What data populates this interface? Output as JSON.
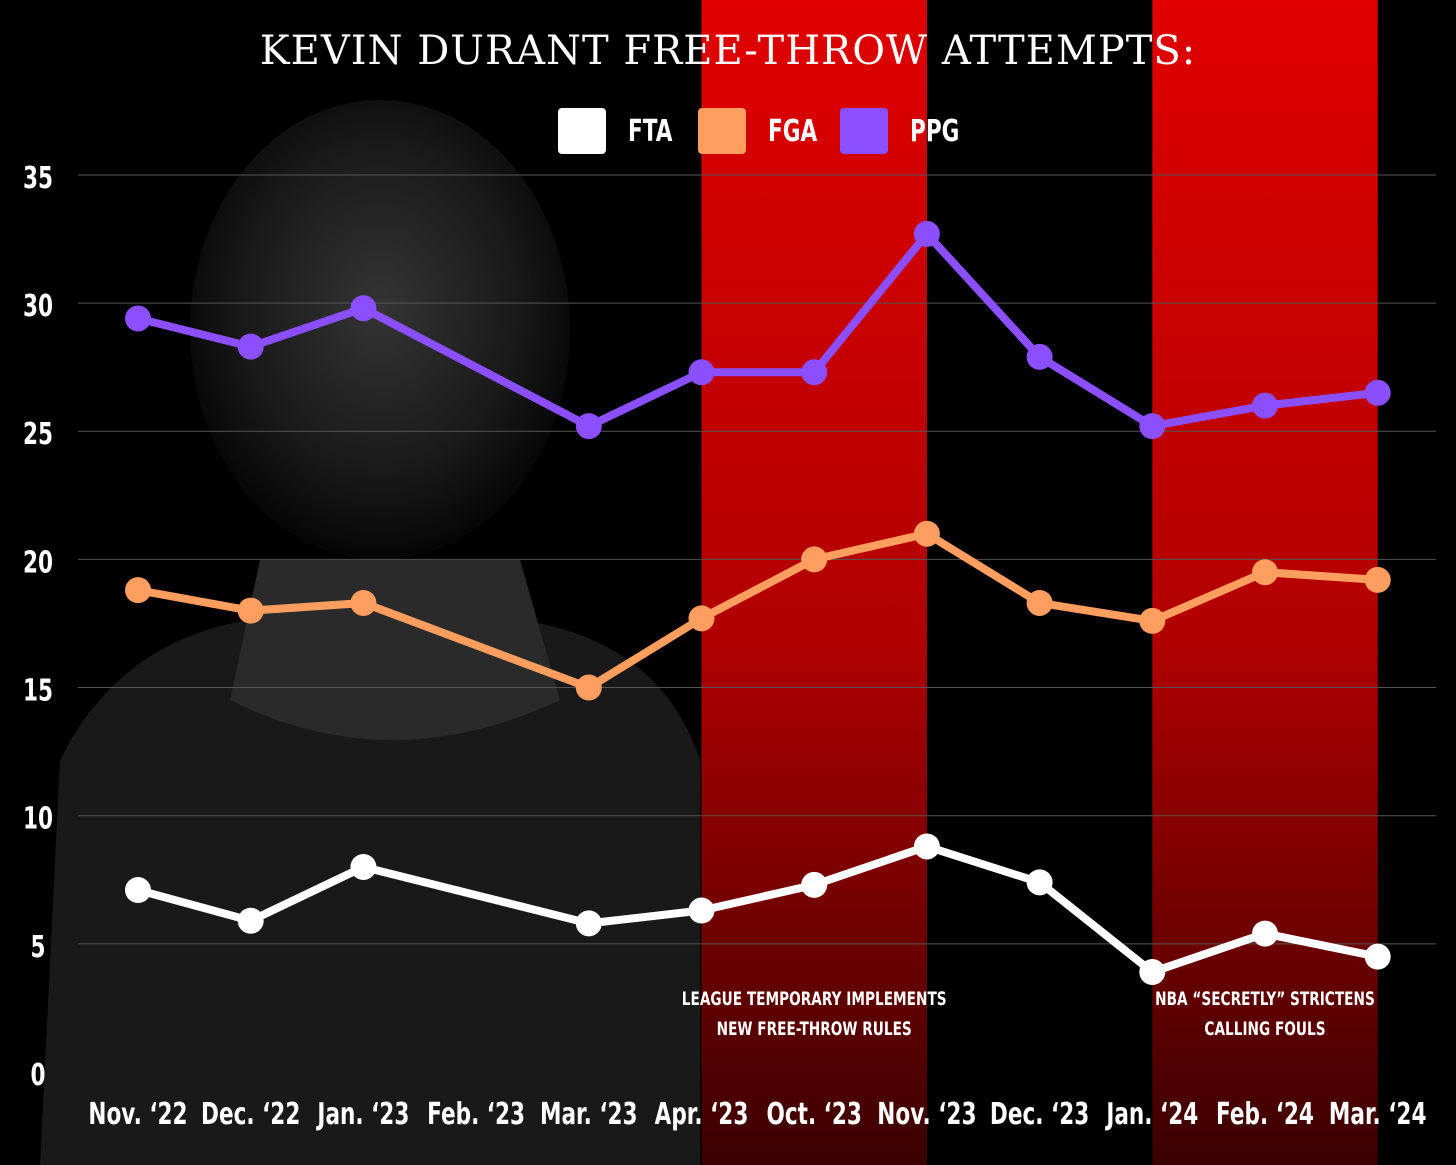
{
  "chart_data": {
    "type": "line",
    "title": "KEVIN DURANT FREE-THROW ATTEMPTS:",
    "xlabel": "",
    "ylabel": "",
    "categories": [
      "Nov. ‘22",
      "Dec. ‘22",
      "Jan. ‘23",
      "Feb. ‘23",
      "Mar. ‘23",
      "Apr. ‘23",
      "Oct. ‘23",
      "Nov. ‘23",
      "Dec. ‘23",
      "Jan. ‘24",
      "Feb. ‘24",
      "Mar. ‘24"
    ],
    "series": [
      {
        "name": "FTA",
        "color": "#ffffff",
        "values": [
          7.1,
          5.9,
          8.0,
          null,
          5.8,
          6.3,
          7.3,
          8.8,
          7.4,
          3.9,
          5.4,
          4.5
        ]
      },
      {
        "name": "FGA",
        "color": "#ff9e5e",
        "values": [
          18.8,
          18.0,
          18.3,
          null,
          15.0,
          17.7,
          20.0,
          21.0,
          18.3,
          17.6,
          19.5,
          19.2
        ]
      },
      {
        "name": "PPG",
        "color": "#8c4fff",
        "values": [
          29.4,
          28.3,
          29.8,
          null,
          25.2,
          27.3,
          27.3,
          32.7,
          27.9,
          25.2,
          26.0,
          26.5
        ]
      }
    ],
    "ylim": [
      0,
      35
    ],
    "yticks": [
      0,
      5,
      10,
      15,
      20,
      25,
      30,
      35
    ],
    "grid": true,
    "legend_position": "top-center",
    "highlight_bands": [
      {
        "from": "Apr. ‘23",
        "to": "Nov. ‘23",
        "color": "#e00000",
        "annotation": [
          "LEAGUE TEMPORARY IMPLEMENTS",
          "NEW FREE-THROW RULES"
        ]
      },
      {
        "from": "Jan. ‘24",
        "to": "Mar. ‘24",
        "color": "#e00000",
        "annotation": [
          "NBA “SECRETLY” STRICTENS",
          "CALLING FOULS"
        ]
      }
    ]
  },
  "colors": {
    "background": "#000000",
    "band": "#e00000",
    "grid": "#555555",
    "text": "#ffffff"
  }
}
